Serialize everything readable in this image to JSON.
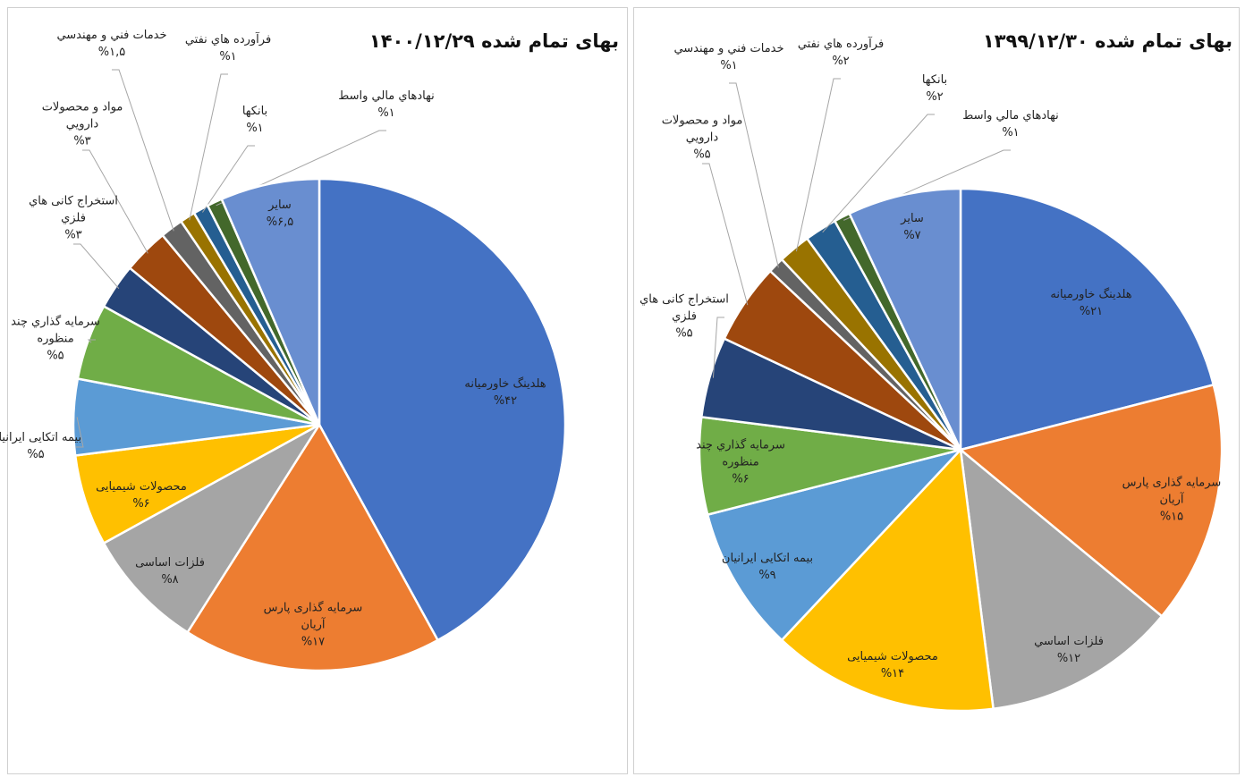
{
  "chart_data": [
    {
      "type": "pie",
      "title": "بهای تمام شده ۱۴۰۰/۱۲/۲۹",
      "categories": [
        "هلدینگ خاورمیانه",
        "سرمایه گذاری پارس آریان",
        "فلزات اساسی",
        "محصولات شیمیایی",
        "بیمه اتکایی ایرانیان",
        "سرمایه گذاري چند منظوره",
        "استخراج کانی هاي فلزي",
        "مواد و محصولات دارويي",
        "خدمات فني و مهندسي",
        "فرآورده هاي نفتي",
        "بانکها",
        "نهادهاي مالي واسط",
        "ساير"
      ],
      "values": [
        42,
        17,
        8,
        6,
        5,
        5,
        3,
        3,
        1.5,
        1,
        1,
        1,
        6.5
      ],
      "value_labels": [
        "%۴۲",
        "%۱۷",
        "%۸",
        "%۶",
        "%۵",
        "%۵",
        "%۳",
        "%۳",
        "%۱,۵",
        "%۱",
        "%۱",
        "%۱",
        "%۶,۵"
      ],
      "colors": [
        "#4472c4",
        "#ed7d31",
        "#a5a5a5",
        "#ffc000",
        "#5b9bd5",
        "#70ad47",
        "#264478",
        "#9e480e",
        "#636363",
        "#997300",
        "#255e91",
        "#43682b",
        "#698ed0"
      ]
    },
    {
      "type": "pie",
      "title": "بهای تمام شده ۱۳۹۹/۱۲/۳۰",
      "categories": [
        "هلدینگ خاورمیانه",
        "سرمایه گذاری پارس آریان",
        "فلزات اساسي",
        "محصولات شیمیایی",
        "بیمه اتکایی ایرانیان",
        "سرمایه گذاري چند منظوره",
        "استخراج کانی هاي فلزي",
        "مواد و محصولات دارويي",
        "خدمات فني و مهندسي",
        "فرآورده هاي نفتي",
        "بانکها",
        "نهادهاي مالي واسط",
        "ساير"
      ],
      "values": [
        21,
        15,
        12,
        14,
        9,
        6,
        5,
        5,
        1,
        2,
        2,
        1,
        7
      ],
      "value_labels": [
        "%۲۱",
        "%۱۵",
        "%۱۲",
        "%۱۴",
        "%۹",
        "%۶",
        "%۵",
        "%۵",
        "%۱",
        "%۲",
        "%۲",
        "%۱",
        "%۷"
      ],
      "colors": [
        "#4472c4",
        "#ed7d31",
        "#a5a5a5",
        "#ffc000",
        "#5b9bd5",
        "#70ad47",
        "#264478",
        "#9e480e",
        "#636363",
        "#997300",
        "#255e91",
        "#43682b",
        "#698ed0"
      ]
    }
  ]
}
